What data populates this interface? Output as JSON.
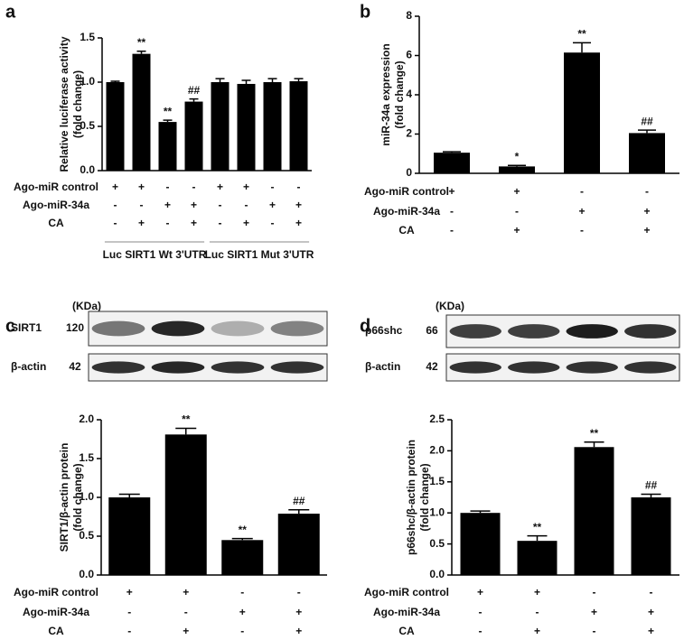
{
  "chart_data": [
    {
      "type": "bar",
      "panel": "a",
      "ylabel": [
        "Relative luciferase activity",
        "(fold change)"
      ],
      "values": [
        1.0,
        1.32,
        0.55,
        0.78,
        1.0,
        0.98,
        1.0,
        1.01
      ],
      "errors": [
        0.01,
        0.03,
        0.02,
        0.03,
        0.04,
        0.04,
        0.04,
        0.03
      ],
      "significance": [
        null,
        "**",
        "**",
        "##",
        null,
        null,
        null,
        null
      ],
      "color": "#000000",
      "ylim": [
        0,
        1.5
      ],
      "yticks": [
        {
          "value": 0,
          "label": "0.0"
        },
        0.5,
        {
          "value": 1,
          "label": "1.0"
        },
        1.5
      ],
      "conditions": [
        {
          "label": "Ago-miR control",
          "marks": [
            "+",
            "+",
            "-",
            "-",
            "+",
            "+",
            "-",
            "-"
          ]
        },
        {
          "label": "Ago-miR-34a",
          "marks": [
            "-",
            "-",
            "+",
            "+",
            "-",
            "-",
            "+",
            "+"
          ]
        },
        {
          "label": "CA",
          "marks": [
            "-",
            "+",
            "-",
            "+",
            "-",
            "+",
            "-",
            "+"
          ]
        }
      ],
      "groups": [
        "Luc SIRT1 Wt 3'UTR",
        "Luc SIRT1 Mut 3'UTR"
      ]
    },
    {
      "type": "bar",
      "panel": "b",
      "ylabel": [
        "miR-34a expression",
        "(fold change)"
      ],
      "values": [
        1.05,
        0.35,
        6.15,
        2.05
      ],
      "errors": [
        0.05,
        0.05,
        0.5,
        0.15
      ],
      "significance": [
        null,
        "*",
        "**",
        "##"
      ],
      "color": "#000000",
      "ylim": [
        0,
        8
      ],
      "yticks": [
        0,
        2,
        4,
        6,
        8
      ],
      "conditions": [
        {
          "label": "Ago-miR control",
          "marks": [
            "+",
            "+",
            "-",
            "-"
          ]
        },
        {
          "label": "Ago-miR-34a",
          "marks": [
            "-",
            "-",
            "+",
            "+"
          ]
        },
        {
          "label": "CA",
          "marks": [
            "-",
            "+",
            "-",
            "+"
          ]
        }
      ]
    },
    {
      "type": "bar",
      "panel": "c",
      "ylabel": [
        "SIRT1/β-actin protein",
        "(fold change)"
      ],
      "values": [
        1.0,
        1.81,
        0.45,
        0.79
      ],
      "errors": [
        0.04,
        0.08,
        0.02,
        0.05
      ],
      "significance": [
        null,
        "**",
        "**",
        "##"
      ],
      "color": "#000000",
      "ylim": [
        0,
        2
      ],
      "yticks": [
        {
          "value": 0,
          "label": "0.0"
        },
        0.5,
        {
          "value": 1,
          "label": "1.0"
        },
        1.5,
        {
          "value": 2,
          "label": "2.0"
        }
      ],
      "conditions": [
        {
          "label": "Ago-miR control",
          "marks": [
            "+",
            "+",
            "-",
            "-"
          ]
        },
        {
          "label": "Ago-miR-34a",
          "marks": [
            "-",
            "-",
            "+",
            "+"
          ]
        },
        {
          "label": "CA",
          "marks": [
            "-",
            "+",
            "-",
            "+"
          ]
        }
      ],
      "blot": {
        "unit": "(KDa)",
        "rows": [
          {
            "name": "SIRT1",
            "kda": "120"
          },
          {
            "name": "β-actin",
            "kda": "42"
          }
        ]
      }
    },
    {
      "type": "bar",
      "panel": "d",
      "ylabel": [
        "p66shc/β-actin protein",
        "(fold change)"
      ],
      "values": [
        1.0,
        0.55,
        2.06,
        1.25
      ],
      "errors": [
        0.03,
        0.08,
        0.08,
        0.05
      ],
      "significance": [
        null,
        "**",
        "**",
        "##"
      ],
      "color": "#000000",
      "ylim": [
        0,
        2.5
      ],
      "yticks": [
        {
          "value": 0,
          "label": "0.0"
        },
        0.5,
        {
          "value": 1,
          "label": "1.0"
        },
        1.5,
        {
          "value": 2,
          "label": "2.0"
        },
        2.5
      ],
      "conditions": [
        {
          "label": "Ago-miR control",
          "marks": [
            "+",
            "+",
            "-",
            "-"
          ]
        },
        {
          "label": "Ago-miR-34a",
          "marks": [
            "-",
            "-",
            "+",
            "+"
          ]
        },
        {
          "label": "CA",
          "marks": [
            "-",
            "+",
            "-",
            "+"
          ]
        }
      ],
      "blot": {
        "unit": "(KDa)",
        "rows": [
          {
            "name": "p66shc",
            "kda": "66"
          },
          {
            "name": "β-actin",
            "kda": "42"
          }
        ]
      }
    }
  ]
}
